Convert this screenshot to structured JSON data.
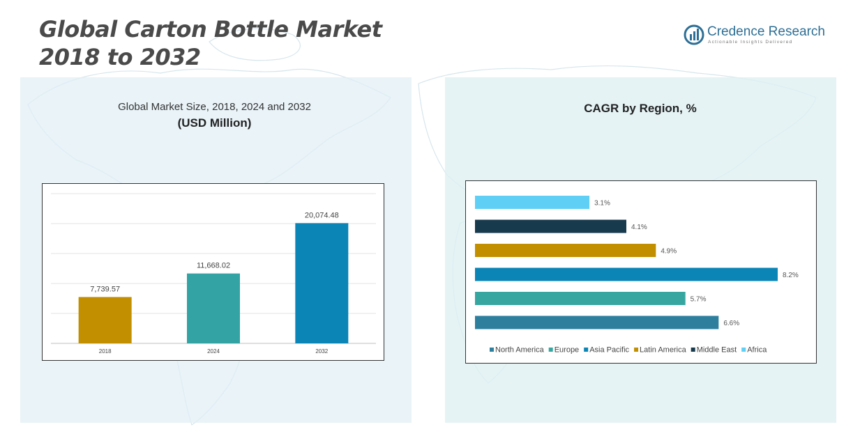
{
  "header": {
    "title_line1": "Global Carton Bottle Market",
    "title_line2": "2018 to 2032"
  },
  "logo": {
    "name": "Credence Research",
    "tagline": "Actionable Insights Delivered",
    "icon": "bar-chart-logo-icon",
    "color": "#2e6f95"
  },
  "chart_data": [
    {
      "type": "bar",
      "title": "Global Market Size, 2018, 2024 and 2032",
      "subtitle": "(USD Million)",
      "categories": [
        "2018",
        "2024",
        "2032"
      ],
      "values": [
        7739.57,
        11668.02,
        20074.48
      ],
      "labels": [
        "7,739.57",
        "11,668.02",
        "20,074.48"
      ],
      "colors": [
        "#c28f00",
        "#33a3a3",
        "#0a85b6"
      ],
      "ylim": [
        0,
        25000
      ],
      "grid": true,
      "legend": "none"
    },
    {
      "type": "bar",
      "orientation": "horizontal",
      "title": "CAGR by Region, %",
      "series": [
        {
          "name": "North America",
          "value": 6.6,
          "label": "6.6%",
          "color": "#2e7f9e"
        },
        {
          "name": "Europe",
          "value": 5.7,
          "label": "5.7%",
          "color": "#38a6a0"
        },
        {
          "name": "Asia Pacific",
          "value": 8.2,
          "label": "8.2%",
          "color": "#0a85b6"
        },
        {
          "name": "Latin America",
          "value": 4.9,
          "label": "4.9%",
          "color": "#c28f00"
        },
        {
          "name": "Middle East",
          "value": 4.1,
          "label": "4.1%",
          "color": "#173a4d"
        },
        {
          "name": "Africa",
          "value": 3.1,
          "label": "3.1%",
          "color": "#5fcff5"
        }
      ],
      "xlim": [
        0,
        8.2
      ],
      "grid": false,
      "legend": "bottom"
    }
  ]
}
